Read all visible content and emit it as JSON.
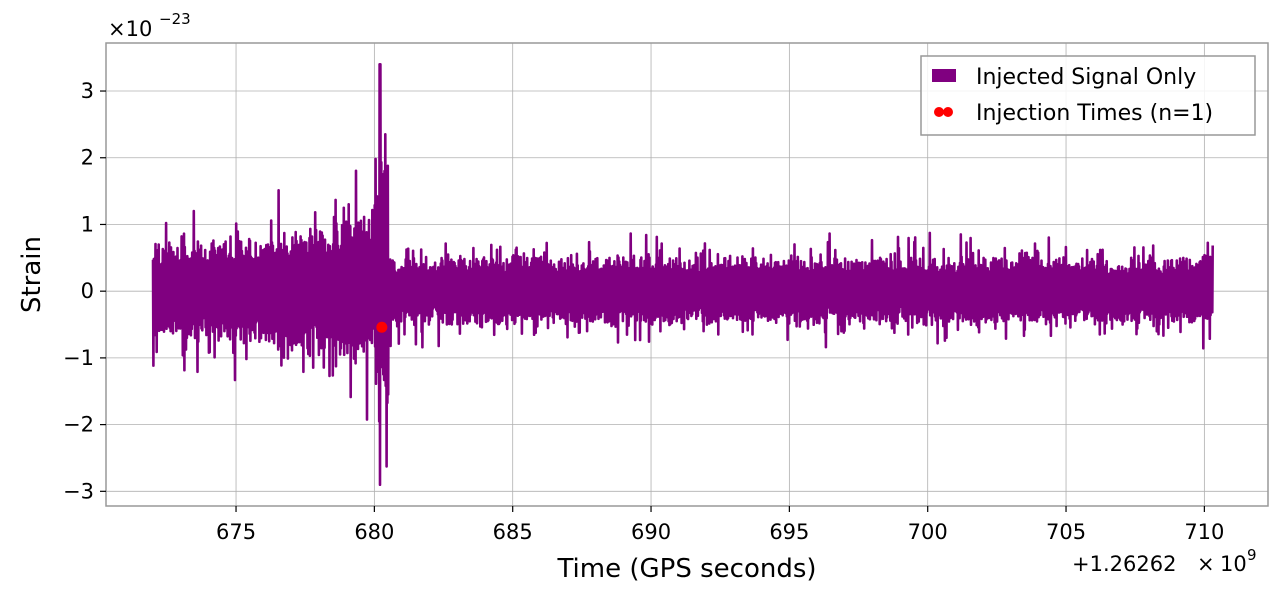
{
  "chart_data": {
    "type": "line",
    "xlabel": "Time (GPS seconds)",
    "ylabel": "Strain",
    "x_offset_label": "+1.26262",
    "x_offset_times": "×",
    "x_offset_base": "10",
    "x_offset_exp": "9",
    "y_scale_prefix": "×10",
    "y_scale_exp": "−23",
    "xlim": [
      670.3,
      712.3
    ],
    "ylim": [
      -3.22,
      3.72
    ],
    "x_ticks": [
      675,
      680,
      685,
      690,
      695,
      700,
      705,
      710
    ],
    "x_tick_labels": [
      "675",
      "680",
      "685",
      "690",
      "695",
      "700",
      "705",
      "710"
    ],
    "y_ticks": [
      -3,
      -2,
      -1,
      0,
      1,
      2,
      3
    ],
    "y_tick_labels": [
      "−3",
      "−2",
      "−1",
      "0",
      "1",
      "2",
      "3"
    ],
    "grid": true,
    "legend_position": "top-right",
    "series": [
      {
        "name": "Injected Signal Only",
        "color": "#800080",
        "kind": "line",
        "segments": [
          {
            "x_start": 672.0,
            "x_end": 680.0,
            "amp_start": 0.8,
            "amp_end": 1.3
          },
          {
            "x_start": 680.0,
            "x_end": 680.5,
            "amp_start": 1.6,
            "amp_end": 3.3
          },
          {
            "x_start": 680.5,
            "x_end": 710.3,
            "amp_start": 0.55,
            "amp_end": 0.55
          }
        ],
        "peak_max": 3.4,
        "peak_min": -2.9,
        "peak_x": 680.2
      },
      {
        "name": "Injection Times (n=1)",
        "color": "#ff0000",
        "kind": "scatter",
        "points": [
          {
            "x": 680.27,
            "y": -0.54
          }
        ]
      }
    ]
  }
}
